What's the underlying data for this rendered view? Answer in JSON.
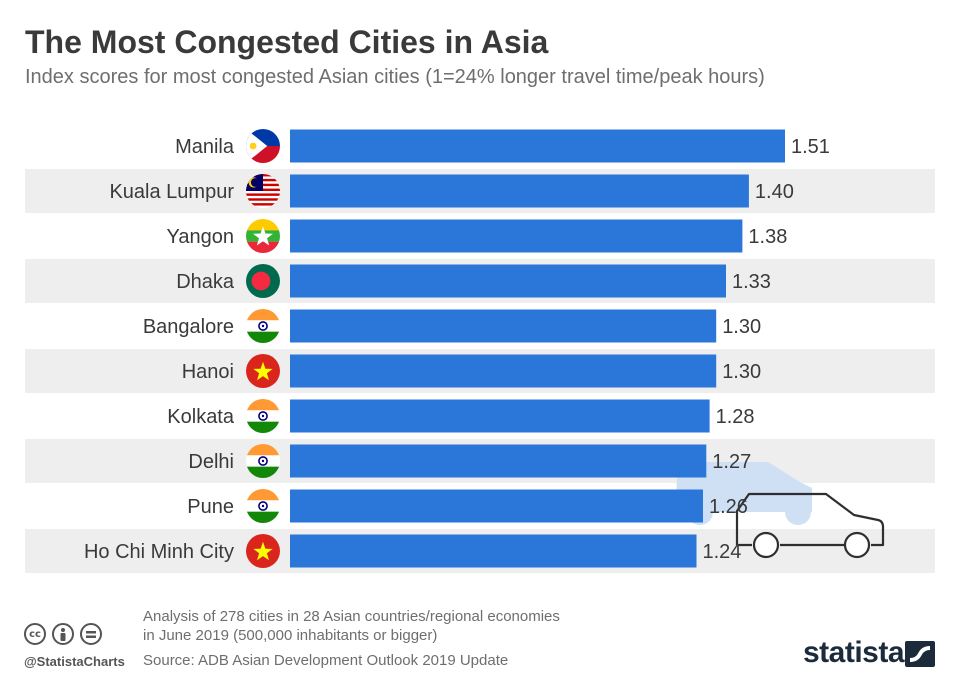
{
  "header": {
    "title": "The Most Congested Cities in Asia",
    "subtitle": "Index scores for most congested Asian cities (1=24% longer travel time/peak hours)"
  },
  "colors": {
    "bar": "#2a77d9",
    "row_band": "#eeeeee",
    "car_fill": "#cfe0f5",
    "car_outline": "#2f2f2f"
  },
  "chart_data": {
    "type": "bar",
    "orientation": "horizontal",
    "categories": [
      "Manila",
      "Kuala Lumpur",
      "Yangon",
      "Dhaka",
      "Bangalore",
      "Hanoi",
      "Kolkata",
      "Delhi",
      "Pune",
      "Ho Chi Minh City"
    ],
    "values": [
      1.51,
      1.4,
      1.38,
      1.33,
      1.3,
      1.3,
      1.28,
      1.27,
      1.26,
      1.24
    ],
    "value_labels": [
      "1.51",
      "1.40",
      "1.38",
      "1.33",
      "1.30",
      "1.30",
      "1.28",
      "1.27",
      "1.26",
      "1.24"
    ],
    "flags": [
      "philippines-flag",
      "malaysia-flag",
      "myanmar-flag",
      "bangladesh-flag",
      "india-flag",
      "vietnam-flag",
      "india-flag",
      "india-flag",
      "india-flag",
      "vietnam-flag"
    ],
    "xlim": [
      0,
      1.51
    ],
    "grid": false,
    "legend": "none"
  },
  "footer": {
    "note": "Analysis of 278 cities in 28 Asian countries/regional economies in June 2019 (500,000 inhabitants or bigger)",
    "source": "Source: ADB Asian Development Outlook 2019 Update",
    "handle": "@StatistaCharts",
    "license_icons": [
      "cc-icon",
      "attribution-icon",
      "no-derivatives-icon"
    ],
    "brand": "statista"
  }
}
